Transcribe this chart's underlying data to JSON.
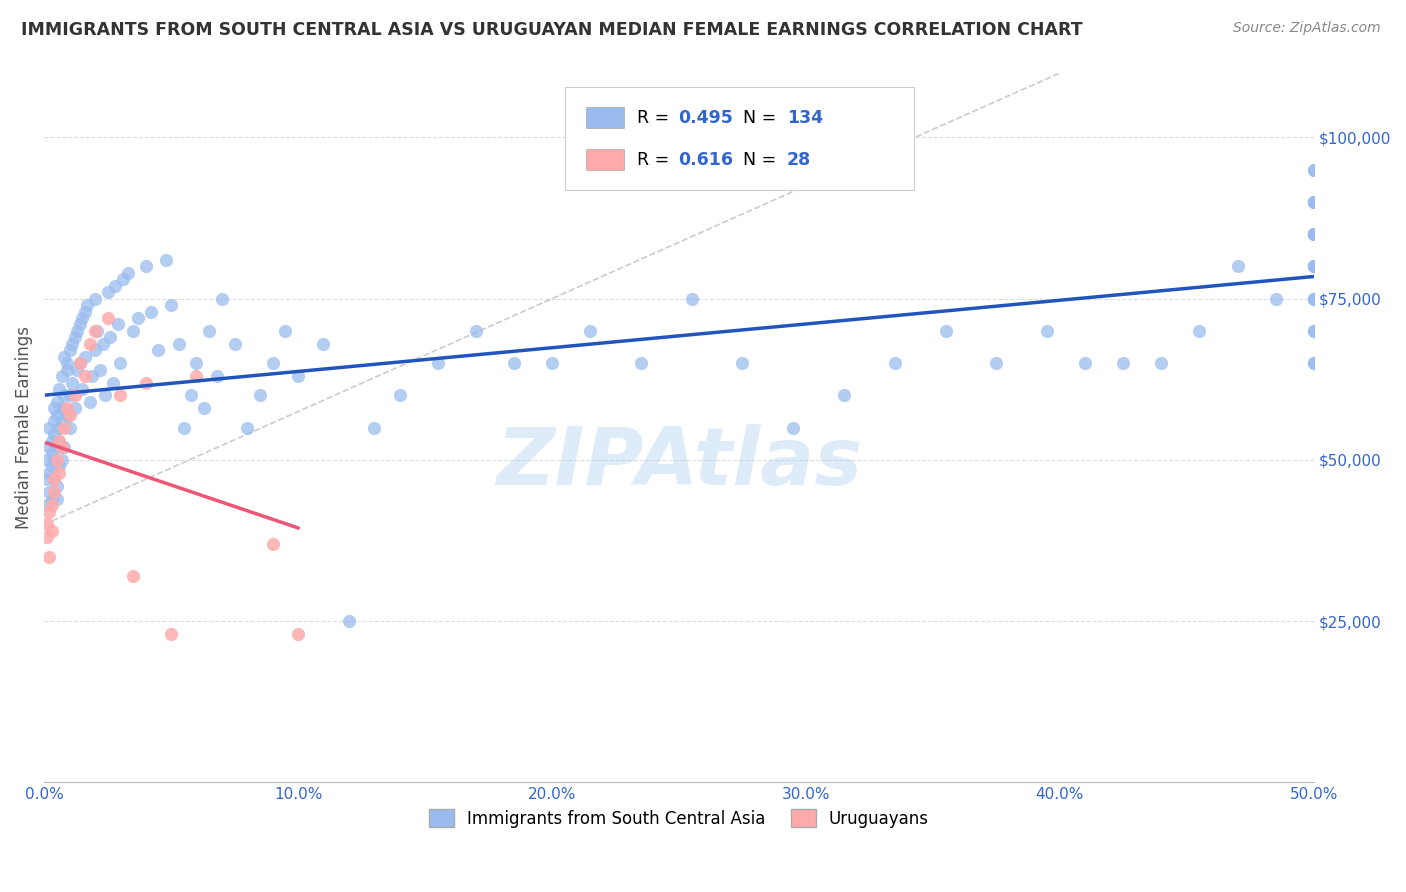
{
  "title": "IMMIGRANTS FROM SOUTH CENTRAL ASIA VS URUGUAYAN MEDIAN FEMALE EARNINGS CORRELATION CHART",
  "source": "Source: ZipAtlas.com",
  "ylabel": "Median Female Earnings",
  "xlim": [
    0.0,
    0.5
  ],
  "ylim": [
    0,
    110000
  ],
  "blue_R": "0.495",
  "blue_N": "134",
  "pink_R": "0.616",
  "pink_N": "28",
  "blue_scatter_color": "#99BBEE",
  "pink_scatter_color": "#FFAAAA",
  "blue_line_color": "#2255BB",
  "pink_line_color": "#EE5577",
  "gray_dash_color": "#CCCCCC",
  "axis_color": "#3366CC",
  "title_color": "#333333",
  "source_color": "#888888",
  "watermark": "ZIPAtlas",
  "watermark_color": "#AACCEE",
  "grid_color": "#DDDDDD",
  "ytick_vals": [
    25000,
    50000,
    75000,
    100000
  ],
  "ytick_labels": [
    "$25,000",
    "$50,000",
    "$75,000",
    "$100,000"
  ],
  "xtick_vals": [
    0.0,
    0.1,
    0.2,
    0.3,
    0.4,
    0.5
  ],
  "xtick_labels": [
    "0.0%",
    "10.0%",
    "20.0%",
    "30.0%",
    "40.0%",
    "50.0%"
  ],
  "legend_label_blue": "Immigrants from South Central Asia",
  "legend_label_pink": "Uruguayans",
  "blue_scatter_x": [
    0.001,
    0.001,
    0.001,
    0.002,
    0.002,
    0.002,
    0.002,
    0.003,
    0.003,
    0.003,
    0.003,
    0.004,
    0.004,
    0.004,
    0.004,
    0.004,
    0.005,
    0.005,
    0.005,
    0.005,
    0.005,
    0.006,
    0.006,
    0.006,
    0.006,
    0.007,
    0.007,
    0.007,
    0.007,
    0.008,
    0.008,
    0.008,
    0.009,
    0.009,
    0.009,
    0.01,
    0.01,
    0.01,
    0.011,
    0.011,
    0.012,
    0.012,
    0.013,
    0.013,
    0.014,
    0.014,
    0.015,
    0.015,
    0.016,
    0.016,
    0.017,
    0.018,
    0.019,
    0.02,
    0.02,
    0.021,
    0.022,
    0.023,
    0.024,
    0.025,
    0.026,
    0.027,
    0.028,
    0.029,
    0.03,
    0.031,
    0.033,
    0.035,
    0.037,
    0.04,
    0.042,
    0.045,
    0.048,
    0.05,
    0.053,
    0.055,
    0.058,
    0.06,
    0.063,
    0.065,
    0.068,
    0.07,
    0.075,
    0.08,
    0.085,
    0.09,
    0.095,
    0.1,
    0.11,
    0.12,
    0.13,
    0.14,
    0.155,
    0.17,
    0.185,
    0.2,
    0.215,
    0.235,
    0.255,
    0.275,
    0.295,
    0.315,
    0.335,
    0.355,
    0.375,
    0.395,
    0.41,
    0.425,
    0.44,
    0.455,
    0.47,
    0.485,
    0.5,
    0.5,
    0.5,
    0.5,
    0.5,
    0.5,
    0.5,
    0.5,
    0.5,
    0.5,
    0.5,
    0.5,
    0.5,
    0.5,
    0.5,
    0.5,
    0.5,
    0.5,
    0.5,
    0.5,
    0.5,
    0.5
  ],
  "blue_scatter_y": [
    47000,
    43000,
    50000,
    52000,
    45000,
    48000,
    55000,
    44000,
    53000,
    49000,
    51000,
    54000,
    56000,
    50000,
    47000,
    58000,
    57000,
    44000,
    52000,
    46000,
    59000,
    55000,
    53000,
    61000,
    49000,
    58000,
    63000,
    50000,
    56000,
    60000,
    66000,
    52000,
    65000,
    64000,
    57000,
    67000,
    60000,
    55000,
    68000,
    62000,
    69000,
    58000,
    70000,
    64000,
    71000,
    65000,
    72000,
    61000,
    66000,
    73000,
    74000,
    59000,
    63000,
    67000,
    75000,
    70000,
    64000,
    68000,
    60000,
    76000,
    69000,
    62000,
    77000,
    71000,
    65000,
    78000,
    79000,
    70000,
    72000,
    80000,
    73000,
    67000,
    81000,
    74000,
    68000,
    55000,
    60000,
    65000,
    58000,
    70000,
    63000,
    75000,
    68000,
    55000,
    60000,
    65000,
    70000,
    63000,
    68000,
    25000,
    55000,
    60000,
    65000,
    70000,
    65000,
    65000,
    70000,
    65000,
    75000,
    65000,
    55000,
    60000,
    65000,
    70000,
    65000,
    70000,
    65000,
    65000,
    65000,
    70000,
    80000,
    75000,
    95000,
    85000,
    65000,
    90000,
    75000,
    85000,
    80000,
    75000,
    70000,
    65000,
    85000,
    90000,
    95000,
    85000,
    90000,
    80000,
    75000,
    70000,
    80000,
    85000,
    90000,
    80000
  ],
  "pink_scatter_x": [
    0.001,
    0.001,
    0.002,
    0.002,
    0.003,
    0.003,
    0.004,
    0.004,
    0.005,
    0.006,
    0.006,
    0.007,
    0.008,
    0.009,
    0.01,
    0.012,
    0.014,
    0.016,
    0.018,
    0.02,
    0.025,
    0.03,
    0.035,
    0.04,
    0.06,
    0.09,
    0.1,
    0.05
  ],
  "pink_scatter_y": [
    38000,
    40000,
    35000,
    42000,
    43000,
    39000,
    47000,
    45000,
    50000,
    48000,
    53000,
    52000,
    55000,
    58000,
    57000,
    60000,
    65000,
    63000,
    68000,
    70000,
    72000,
    60000,
    32000,
    62000,
    63000,
    37000,
    23000,
    23000
  ]
}
